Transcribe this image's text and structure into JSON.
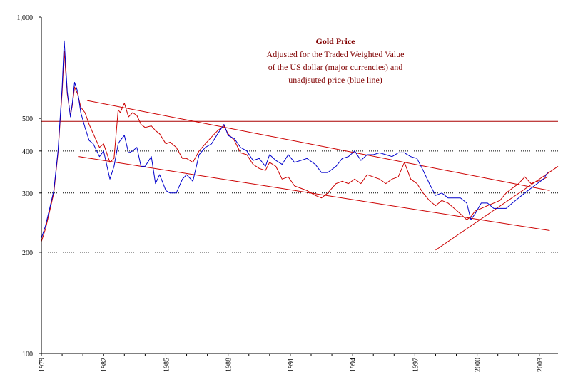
{
  "chart_data": {
    "type": "line",
    "title": "Gold Price",
    "subtitle_lines": [
      "Adjusted for the Traded Weighted Value",
      "of the US dollar (major currencies) and",
      "unadjsuted price (blue line)"
    ],
    "xlabel": "",
    "ylabel": "",
    "y_scale": "log",
    "ylim": [
      100,
      1000
    ],
    "xlim": [
      1979,
      2003.9
    ],
    "y_ticks": [
      1000,
      500,
      400,
      300,
      200,
      100
    ],
    "y_tick_labels": [
      "1,000",
      "500",
      "400",
      "300",
      "200",
      "100"
    ],
    "x_ticks": [
      1979,
      1982,
      1985,
      1988,
      1991,
      1994,
      1997,
      2000,
      2003
    ],
    "x_tick_labels": [
      "1979",
      "1982",
      "1985",
      "1988",
      "1991",
      "1994",
      "1997",
      "2000",
      "2003"
    ],
    "reference_lines": [
      {
        "style": "solid",
        "y": 490
      },
      {
        "style": "dotted",
        "y": 400
      },
      {
        "style": "dotted",
        "y": 300
      },
      {
        "style": "dotted",
        "y": 200
      }
    ],
    "trend_lines": [
      {
        "x": [
          1981.2,
          2003.5
        ],
        "y": [
          565,
          305
        ]
      },
      {
        "x": [
          1980.8,
          2003.5
        ],
        "y": [
          385,
          232
        ]
      },
      {
        "x": [
          1998.0,
          2003.9
        ],
        "y": [
          203,
          360
        ]
      }
    ],
    "series": [
      {
        "color": "#0000cc",
        "x": [
          1979.0,
          1979.2,
          1979.4,
          1979.6,
          1979.8,
          1980.0,
          1980.1,
          1980.25,
          1980.4,
          1980.5,
          1980.6,
          1980.75,
          1980.9,
          1981.1,
          1981.3,
          1981.5,
          1981.8,
          1982.0,
          1982.3,
          1982.5,
          1982.7,
          1982.8,
          1983.0,
          1983.2,
          1983.4,
          1983.6,
          1983.8,
          1984.0,
          1984.3,
          1984.5,
          1984.7,
          1985.0,
          1985.2,
          1985.5,
          1985.8,
          1986.0,
          1986.3,
          1986.6,
          1986.9,
          1987.2,
          1987.5,
          1987.8,
          1988.0,
          1988.3,
          1988.6,
          1988.9,
          1989.2,
          1989.5,
          1989.8,
          1990.0,
          1990.3,
          1990.6,
          1990.9,
          1991.2,
          1991.5,
          1991.8,
          1992.2,
          1992.5,
          1992.8,
          1993.2,
          1993.5,
          1993.8,
          1994.1,
          1994.4,
          1994.7,
          1995.0,
          1995.3,
          1995.6,
          1995.9,
          1996.2,
          1996.5,
          1996.8,
          1997.1,
          1997.4,
          1997.7,
          1998.0,
          1998.3,
          1998.6,
          1998.9,
          1999.2,
          1999.5,
          1999.7,
          1999.9,
          2000.2,
          2000.5,
          2000.8,
          2001.1,
          2001.4,
          2001.7,
          2002.0,
          2002.3,
          2002.6,
          2002.9,
          2003.2,
          2003.4
        ],
        "y": [
          220,
          240,
          270,
          305,
          400,
          620,
          850,
          600,
          505,
          560,
          640,
          600,
          520,
          470,
          430,
          420,
          385,
          400,
          330,
          360,
          420,
          430,
          445,
          395,
          400,
          410,
          360,
          360,
          385,
          320,
          340,
          305,
          300,
          300,
          330,
          340,
          325,
          390,
          410,
          420,
          450,
          480,
          445,
          435,
          410,
          400,
          375,
          380,
          360,
          390,
          375,
          365,
          390,
          370,
          375,
          380,
          365,
          345,
          345,
          360,
          380,
          385,
          400,
          375,
          390,
          390,
          395,
          390,
          385,
          395,
          395,
          385,
          380,
          350,
          320,
          295,
          300,
          290,
          290,
          290,
          280,
          250,
          260,
          280,
          280,
          270,
          270,
          270,
          280,
          290,
          300,
          310,
          320,
          330,
          345
        ]
      },
      {
        "color": "#cc0000",
        "x": [
          1979.0,
          1979.2,
          1979.4,
          1979.6,
          1979.8,
          1980.0,
          1980.1,
          1980.25,
          1980.4,
          1980.5,
          1980.6,
          1980.75,
          1980.9,
          1981.1,
          1981.3,
          1981.5,
          1981.8,
          1982.0,
          1982.3,
          1982.5,
          1982.7,
          1982.8,
          1983.0,
          1983.2,
          1983.4,
          1983.6,
          1983.8,
          1984.0,
          1984.3,
          1984.5,
          1984.7,
          1985.0,
          1985.2,
          1985.5,
          1985.8,
          1986.0,
          1986.3,
          1986.6,
          1986.9,
          1987.2,
          1987.5,
          1987.8,
          1988.0,
          1988.3,
          1988.6,
          1988.9,
          1989.2,
          1989.5,
          1989.8,
          1990.0,
          1990.3,
          1990.6,
          1990.9,
          1991.2,
          1991.5,
          1991.8,
          1992.2,
          1992.5,
          1992.8,
          1993.2,
          1993.5,
          1993.8,
          1994.1,
          1994.4,
          1994.7,
          1995.0,
          1995.3,
          1995.6,
          1995.9,
          1996.2,
          1996.5,
          1996.8,
          1997.1,
          1997.4,
          1997.7,
          1998.0,
          1998.3,
          1998.6,
          1998.9,
          1999.2,
          1999.5,
          1999.7,
          1999.9,
          2000.2,
          2000.5,
          2000.8,
          2001.1,
          2001.4,
          2001.7,
          2002.0,
          2002.3,
          2002.6,
          2002.9,
          2003.2,
          2003.4
        ],
        "y": [
          215,
          235,
          265,
          300,
          395,
          600,
          790,
          590,
          510,
          550,
          620,
          590,
          540,
          520,
          480,
          450,
          410,
          420,
          370,
          380,
          530,
          520,
          555,
          505,
          520,
          510,
          480,
          470,
          475,
          460,
          450,
          420,
          425,
          410,
          380,
          380,
          370,
          400,
          420,
          440,
          460,
          475,
          450,
          430,
          395,
          390,
          365,
          355,
          350,
          370,
          360,
          330,
          335,
          315,
          310,
          305,
          295,
          290,
          300,
          320,
          325,
          320,
          330,
          320,
          340,
          335,
          330,
          320,
          330,
          335,
          370,
          330,
          320,
          300,
          285,
          275,
          285,
          280,
          270,
          260,
          250,
          255,
          265,
          270,
          275,
          280,
          285,
          300,
          310,
          320,
          335,
          320,
          325,
          330,
          335
        ]
      }
    ]
  }
}
